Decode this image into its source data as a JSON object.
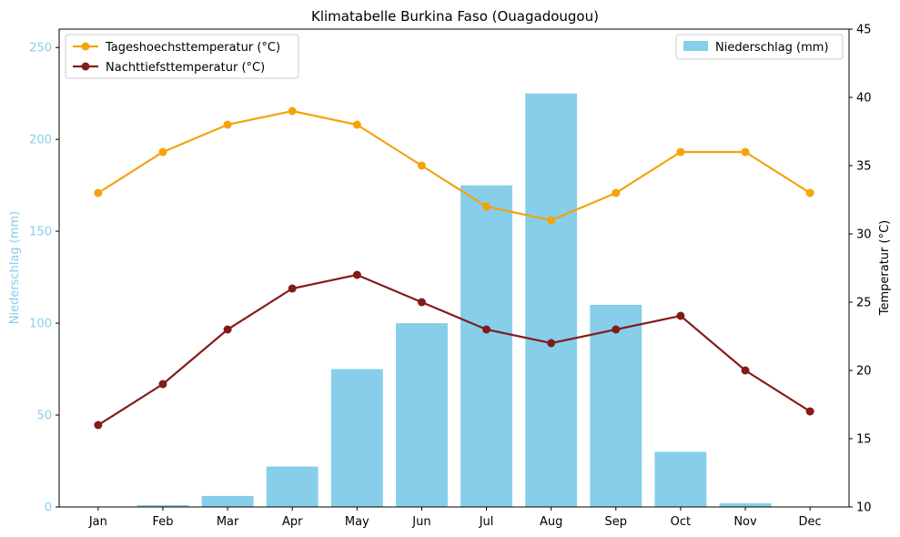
{
  "chart_data": {
    "type": "bar+line",
    "title": "Klimatabelle Burkina Faso (Ouagadougou)",
    "categories": [
      "Jan",
      "Feb",
      "Mar",
      "Apr",
      "May",
      "Jun",
      "Jul",
      "Aug",
      "Sep",
      "Oct",
      "Nov",
      "Dec"
    ],
    "left_axis": {
      "label": "Niederschlag (mm)",
      "ylim": [
        0,
        260
      ],
      "ticks": [
        0,
        50,
        100,
        150,
        200,
        250
      ],
      "color": "#87CEEB"
    },
    "right_axis": {
      "label": "Temperatur (°C)",
      "ylim": [
        10,
        45
      ],
      "ticks": [
        10,
        15,
        20,
        25,
        30,
        35,
        40,
        45
      ],
      "color": "#000000"
    },
    "bars": {
      "name": "Niederschlag (mm)",
      "color": "#87CEEB",
      "values": [
        0,
        1,
        6,
        22,
        75,
        100,
        175,
        225,
        110,
        30,
        2,
        0
      ]
    },
    "series": [
      {
        "name": "Tageshoechsttemperatur (°C)",
        "color": "#F4A30B",
        "values": [
          33,
          36,
          38,
          39,
          38,
          35,
          32,
          31,
          33,
          36,
          36,
          33
        ]
      },
      {
        "name": "Nachttiefsttemperatur (°C)",
        "color": "#841B1B",
        "values": [
          16,
          19,
          23,
          26,
          27,
          25,
          23,
          22,
          23,
          24,
          20,
          17
        ]
      }
    ],
    "legend_lines_position": "top-left",
    "legend_bars_position": "top-right",
    "grid": false
  }
}
